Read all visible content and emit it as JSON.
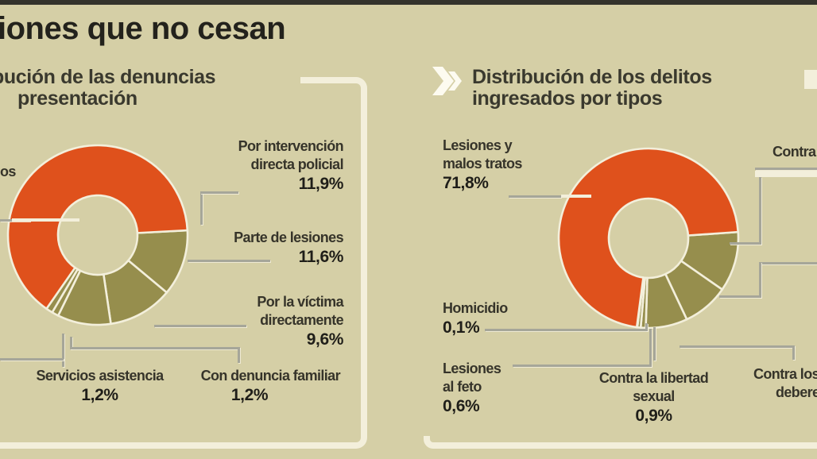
{
  "page": {
    "main_title": "iones que no cesan",
    "colors": {
      "background": "#d5cfa6",
      "orange": "#df511c",
      "olive": "#968e4d",
      "frame_cream": "#f3efdb",
      "leader_gray": "#a6a699",
      "label_text": "#36342a",
      "percent_text": "#1f1e19",
      "top_bar": "#34332c",
      "chevron_white": "#fdfbf0"
    }
  },
  "chart_data": [
    {
      "type": "pie",
      "variant": "donut",
      "title": "bución de las denuncias presentación",
      "title_lines": [
        "bución de las denuncias",
        "presentación"
      ],
      "start_angle": 87,
      "slices": [
        {
          "label": "Por intervención directa policial",
          "value": 11.9,
          "color": "#968e4d"
        },
        {
          "label": "Parte de lesiones",
          "value": 11.6,
          "color": "#968e4d"
        },
        {
          "label": "Por la víctima directamente",
          "value": 9.6,
          "color": "#968e4d"
        },
        {
          "label": "Servicios asistencia",
          "value": 1.2,
          "color": "#968e4d"
        },
        {
          "label": "Con denuncia familiar",
          "value": 1.2,
          "color": "#968e4d"
        },
        {
          "label": "os",
          "value": 64.5,
          "color": "#df511c"
        }
      ],
      "display": {
        "fragment_label": "os",
        "policial": {
          "l1": "Por intervención",
          "l2": "directa policial",
          "pct": "11,9%"
        },
        "lesiones": {
          "l1": "Parte de lesiones",
          "pct": "11,6%"
        },
        "victima": {
          "l1": "Por la víctima",
          "l2": "directamente",
          "pct": "9,6%"
        },
        "servicios": {
          "l1": "Servicios asistencia",
          "pct": "1,2%"
        },
        "familiar": {
          "l1": "Con denuncia familiar",
          "pct": "1,2%"
        }
      }
    },
    {
      "type": "pie",
      "variant": "donut",
      "title": "Distribución de los delitos ingresados por tipos",
      "title_lines": [
        "Distribución de los delitos",
        "ingresados por tipos"
      ],
      "start_angle": 86,
      "slices": [
        {
          "label": "Contra",
          "value": 10.8,
          "color": "#968e4d"
        },
        {
          "label": "",
          "value": 8.3,
          "color": "#968e4d"
        },
        {
          "label": "Contra los deberes",
          "value": 7.5,
          "color": "#968e4d"
        },
        {
          "label": "Contra la libertad sexual",
          "value": 0.9,
          "color": "#968e4d"
        },
        {
          "label": "Lesiones al feto",
          "value": 0.6,
          "color": "#968e4d"
        },
        {
          "label": "Homicidio",
          "value": 0.1,
          "color": "#968e4d"
        },
        {
          "label": "Lesiones y malos tratos",
          "value": 71.8,
          "color": "#df511c"
        }
      ],
      "display": {
        "malostratos": {
          "l1": "Lesiones y",
          "l2": "malos tratos",
          "pct": "71,8%"
        },
        "contra_fragment": "Contra",
        "homicidio": {
          "l1": "Homicidio",
          "pct": "0,1%"
        },
        "feto": {
          "l1": "Lesiones",
          "l2": "al feto",
          "pct": "0,6%"
        },
        "sexual": {
          "l1": "Contra la libertad",
          "l2": "sexual",
          "pct": "0,9%"
        },
        "deberes": {
          "l1": "Contra los",
          "l2": "deberes"
        }
      }
    }
  ]
}
